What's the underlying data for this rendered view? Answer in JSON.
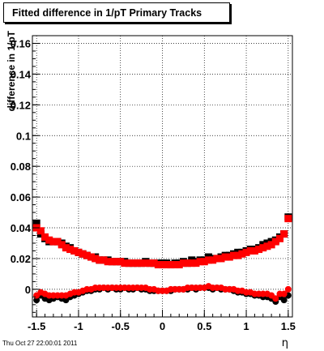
{
  "title": "Fitted difference in 1/pT  Primary Tracks",
  "timestamp": "Thu Oct 27 22:00:01 2011",
  "chart_data": {
    "type": "scatter",
    "title": "Fitted difference in 1/pT  Primary Tracks",
    "xlabel": "η",
    "ylabel": "difference in 1/pT",
    "xlim": [
      -1.55,
      1.55
    ],
    "ylim": [
      -0.018,
      0.165
    ],
    "grid": true,
    "x_ticks": [
      -1.5,
      -1,
      -0.5,
      0,
      0.5,
      1,
      1.5
    ],
    "x_tick_labels": [
      "-1.5",
      "-1",
      "-0.5",
      "0",
      "0.5",
      "1",
      "1.5"
    ],
    "y_ticks": [
      0,
      0.02,
      0.04,
      0.06,
      0.08,
      0.1,
      0.12,
      0.14,
      0.16
    ],
    "y_tick_labels": [
      "0",
      "0.02",
      "0.04",
      "0.06",
      "0.08",
      "0.1",
      "0.12",
      "0.14",
      "0.16"
    ],
    "series": [
      {
        "marker": "square",
        "color": "#000000",
        "x": [
          -1.5,
          -1.45,
          -1.4,
          -1.35,
          -1.3,
          -1.25,
          -1.2,
          -1.15,
          -1.1,
          -1.05,
          -1.0,
          -0.95,
          -0.9,
          -0.85,
          -0.8,
          -0.75,
          -0.7,
          -0.65,
          -0.6,
          -0.55,
          -0.5,
          -0.45,
          -0.4,
          -0.35,
          -0.3,
          -0.25,
          -0.2,
          -0.15,
          -0.1,
          -0.05,
          0.0,
          0.05,
          0.1,
          0.15,
          0.2,
          0.25,
          0.3,
          0.35,
          0.4,
          0.45,
          0.5,
          0.55,
          0.6,
          0.65,
          0.7,
          0.75,
          0.8,
          0.85,
          0.9,
          0.95,
          1.0,
          1.05,
          1.1,
          1.15,
          1.2,
          1.25,
          1.3,
          1.35,
          1.4,
          1.45,
          1.5
        ],
        "y": [
          0.043,
          0.036,
          0.033,
          0.031,
          0.031,
          0.031,
          0.03,
          0.028,
          0.027,
          0.025,
          0.024,
          0.023,
          0.022,
          0.021,
          0.021,
          0.019,
          0.019,
          0.019,
          0.018,
          0.018,
          0.018,
          0.018,
          0.017,
          0.017,
          0.017,
          0.017,
          0.018,
          0.017,
          0.017,
          0.017,
          0.017,
          0.017,
          0.016,
          0.017,
          0.017,
          0.018,
          0.017,
          0.019,
          0.018,
          0.019,
          0.019,
          0.021,
          0.02,
          0.02,
          0.021,
          0.022,
          0.022,
          0.023,
          0.024,
          0.024,
          0.025,
          0.026,
          0.026,
          0.027,
          0.029,
          0.03,
          0.031,
          0.032,
          0.034,
          0.036,
          0.047
        ]
      },
      {
        "marker": "square",
        "color": "#ff0000",
        "x": [
          -1.5,
          -1.45,
          -1.4,
          -1.35,
          -1.3,
          -1.25,
          -1.2,
          -1.15,
          -1.1,
          -1.05,
          -1.0,
          -0.95,
          -0.9,
          -0.85,
          -0.8,
          -0.75,
          -0.7,
          -0.65,
          -0.6,
          -0.55,
          -0.5,
          -0.45,
          -0.4,
          -0.35,
          -0.3,
          -0.25,
          -0.2,
          -0.15,
          -0.1,
          -0.05,
          0.0,
          0.05,
          0.1,
          0.15,
          0.2,
          0.25,
          0.3,
          0.35,
          0.4,
          0.45,
          0.5,
          0.55,
          0.6,
          0.65,
          0.7,
          0.75,
          0.8,
          0.85,
          0.9,
          0.95,
          1.0,
          1.05,
          1.1,
          1.15,
          1.2,
          1.25,
          1.3,
          1.35,
          1.4,
          1.45,
          1.5
        ],
        "y": [
          0.04,
          0.038,
          0.034,
          0.032,
          0.031,
          0.031,
          0.029,
          0.027,
          0.026,
          0.025,
          0.024,
          0.023,
          0.022,
          0.021,
          0.02,
          0.019,
          0.019,
          0.018,
          0.018,
          0.018,
          0.018,
          0.017,
          0.017,
          0.017,
          0.017,
          0.017,
          0.017,
          0.017,
          0.017,
          0.016,
          0.016,
          0.016,
          0.016,
          0.016,
          0.016,
          0.017,
          0.017,
          0.017,
          0.017,
          0.018,
          0.018,
          0.019,
          0.019,
          0.02,
          0.02,
          0.021,
          0.021,
          0.022,
          0.022,
          0.023,
          0.024,
          0.025,
          0.025,
          0.026,
          0.027,
          0.028,
          0.029,
          0.031,
          0.033,
          0.036,
          0.046
        ]
      },
      {
        "marker": "circle",
        "color": "#000000",
        "x": [
          -1.5,
          -1.45,
          -1.4,
          -1.35,
          -1.3,
          -1.25,
          -1.2,
          -1.15,
          -1.1,
          -1.05,
          -1.0,
          -0.95,
          -0.9,
          -0.85,
          -0.8,
          -0.75,
          -0.7,
          -0.65,
          -0.6,
          -0.55,
          -0.5,
          -0.45,
          -0.4,
          -0.35,
          -0.3,
          -0.25,
          -0.2,
          -0.15,
          -0.1,
          -0.05,
          0.0,
          0.05,
          0.1,
          0.15,
          0.2,
          0.25,
          0.3,
          0.35,
          0.4,
          0.45,
          0.5,
          0.55,
          0.6,
          0.65,
          0.7,
          0.75,
          0.8,
          0.85,
          0.9,
          0.95,
          1.0,
          1.05,
          1.1,
          1.15,
          1.2,
          1.25,
          1.3,
          1.35,
          1.4,
          1.45,
          1.5
        ],
        "y": [
          -0.007,
          -0.004,
          -0.006,
          -0.007,
          -0.006,
          -0.005,
          -0.006,
          -0.007,
          -0.005,
          -0.004,
          -0.003,
          -0.002,
          -0.001,
          -0.001,
          0.0,
          0.0,
          0.001,
          0.0,
          0.001,
          0.0,
          0.0,
          0.001,
          0.0,
          0.0,
          0.001,
          0.0,
          0.0,
          -0.001,
          -0.001,
          -0.001,
          -0.001,
          -0.001,
          -0.001,
          0.0,
          0.0,
          0.0,
          0.0,
          0.001,
          0.0,
          0.001,
          0.001,
          0.001,
          0.0,
          0.001,
          0.0,
          0.0,
          0.0,
          -0.001,
          -0.002,
          -0.002,
          -0.003,
          -0.003,
          -0.004,
          -0.004,
          -0.005,
          -0.005,
          -0.006,
          -0.008,
          -0.005,
          -0.007,
          -0.004
        ]
      },
      {
        "marker": "circle",
        "color": "#ff0000",
        "x": [
          -1.5,
          -1.45,
          -1.4,
          -1.35,
          -1.3,
          -1.25,
          -1.2,
          -1.15,
          -1.1,
          -1.05,
          -1.0,
          -0.95,
          -0.9,
          -0.85,
          -0.8,
          -0.75,
          -0.7,
          -0.65,
          -0.6,
          -0.55,
          -0.5,
          -0.45,
          -0.4,
          -0.35,
          -0.3,
          -0.25,
          -0.2,
          -0.15,
          -0.1,
          -0.05,
          0.0,
          0.05,
          0.1,
          0.15,
          0.2,
          0.25,
          0.3,
          0.35,
          0.4,
          0.45,
          0.5,
          0.55,
          0.6,
          0.65,
          0.7,
          0.75,
          0.8,
          0.85,
          0.9,
          0.95,
          1.0,
          1.05,
          1.1,
          1.15,
          1.2,
          1.25,
          1.3,
          1.35,
          1.4,
          1.45,
          1.5
        ],
        "y": [
          -0.004,
          -0.002,
          -0.003,
          -0.004,
          -0.004,
          -0.004,
          -0.004,
          -0.004,
          -0.003,
          -0.002,
          -0.002,
          -0.001,
          0.0,
          0.0,
          0.001,
          0.001,
          0.001,
          0.001,
          0.001,
          0.001,
          0.001,
          0.001,
          0.001,
          0.001,
          0.001,
          0.001,
          0.001,
          0.0,
          0.0,
          -0.001,
          -0.001,
          -0.001,
          0.0,
          0.0,
          0.0,
          0.0,
          0.001,
          0.001,
          0.001,
          0.001,
          0.001,
          0.002,
          0.001,
          0.001,
          0.001,
          0.0,
          0.0,
          0.0,
          -0.001,
          -0.001,
          -0.002,
          -0.002,
          -0.003,
          -0.003,
          -0.003,
          -0.003,
          -0.004,
          -0.006,
          -0.003,
          -0.003,
          0.0
        ]
      }
    ]
  }
}
